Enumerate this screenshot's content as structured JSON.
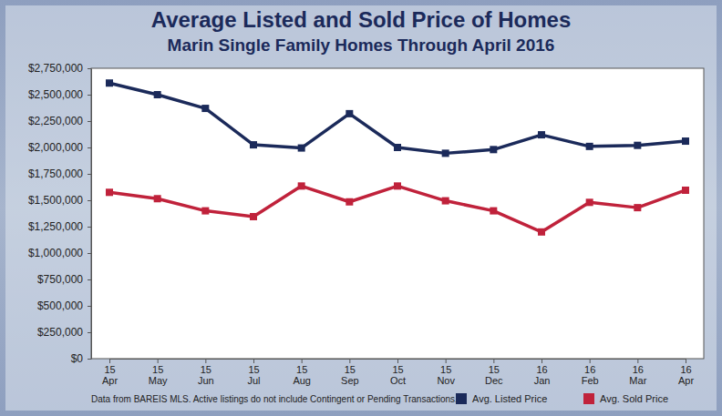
{
  "chart_data": {
    "type": "line",
    "title": "Average Listed and Sold Price of Homes",
    "subtitle": "Marin Single Family Homes Through April 2016",
    "annotations": [
      "Data from BAREIS MLS. Active listings do not include Contingent or Pending Transactions."
    ],
    "categories": [
      "15 Apr",
      "15 May",
      "15 Jun",
      "15 Jul",
      "15 Aug",
      "15 Sep",
      "15 Oct",
      "15 Nov",
      "15 Dec",
      "16 Jan",
      "16 Feb",
      "16 Mar",
      "16 Apr"
    ],
    "series": [
      {
        "name": "Avg. Listed Price",
        "color": "#1b2a5a",
        "marker": "square",
        "values": [
          2610000,
          2500000,
          2370000,
          2025000,
          1995000,
          2320000,
          2000000,
          1945000,
          1980000,
          2120000,
          2010000,
          2020000,
          2060000
        ]
      },
      {
        "name": "Avg. Sold Price",
        "color": "#c0223b",
        "marker": "square",
        "values": [
          1575000,
          1515000,
          1400000,
          1345000,
          1635000,
          1485000,
          1635000,
          1495000,
          1400000,
          1200000,
          1480000,
          1430000,
          1595000
        ]
      }
    ],
    "ylim": [
      0,
      2750000
    ],
    "yticks": [
      {
        "value": 0,
        "label": "$0"
      },
      {
        "value": 250000,
        "label": "$250,000"
      },
      {
        "value": 500000,
        "label": "$500,000"
      },
      {
        "value": 750000,
        "label": "$750,000"
      },
      {
        "value": 1000000,
        "label": "$1,000,000"
      },
      {
        "value": 1250000,
        "label": "$1,250,000"
      },
      {
        "value": 1500000,
        "label": "$1,500,000"
      },
      {
        "value": 1750000,
        "label": "$1,750,000"
      },
      {
        "value": 2000000,
        "label": "$2,000,000"
      },
      {
        "value": 2250000,
        "label": "$2,250,000"
      },
      {
        "value": 2500000,
        "label": "$2,500,000"
      },
      {
        "value": 2750000,
        "label": "$2,750,000"
      }
    ],
    "grid": false,
    "legend": "bottom-right"
  }
}
